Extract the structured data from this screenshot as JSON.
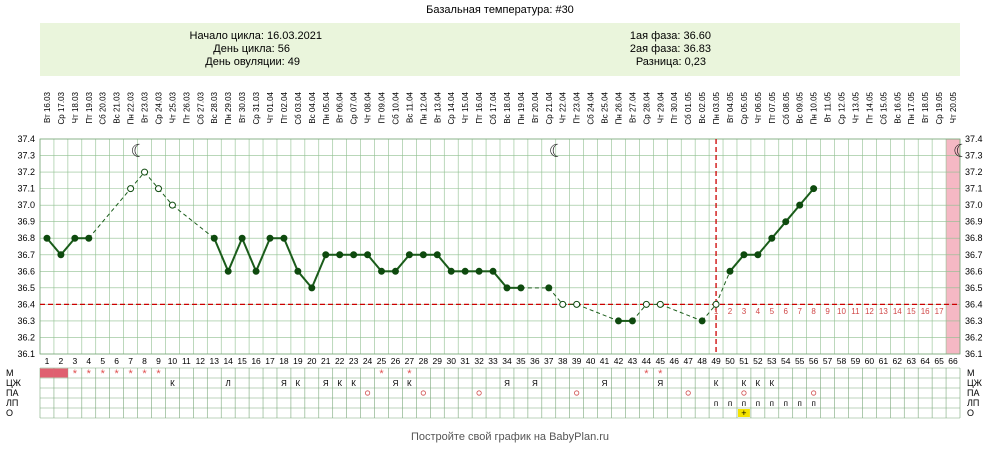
{
  "title": "Базальная температура: #30",
  "info": {
    "cycle_start": "Начало цикла: 16.03.2021",
    "cycle_day": "День цикла: 56",
    "ovulation_day": "День овуляции: 49",
    "phase1": "1ая фаза: 36.60",
    "phase2": "2ая фаза: 36.83",
    "difference": "Разница: 0,23"
  },
  "footer": "Постройте свой график на BabyPlan.ru",
  "colors": {
    "line": "#1a5c1a",
    "point": "#0e4a0e",
    "coverline": "#cc0000",
    "grid": "#8fbf8f",
    "info_bg": "#eaf5dc",
    "pink_band": "#f5b8c4",
    "menses": "#e06070",
    "star": "#e05050",
    "lp_yellow": "#f4e200"
  },
  "chart_data": {
    "type": "line",
    "ylim": [
      36.1,
      37.4
    ],
    "yticks": [
      "36.1",
      "36.2",
      "36.3",
      "36.4",
      "36.5",
      "36.6",
      "36.7",
      "36.8",
      "36.9",
      "37.0",
      "37.1",
      "37.2",
      "37.3",
      "37.4"
    ],
    "cycle_days": 66,
    "weekdays": [
      "Вт",
      "Ср",
      "Чт",
      "Пт",
      "Сб",
      "Вс",
      "Пн",
      "Вт",
      "Ср",
      "Чт",
      "Пт",
      "Сб",
      "Вс",
      "Пн",
      "Вт",
      "Ср",
      "Чт",
      "Пт",
      "Сб",
      "Вс",
      "Пн",
      "Вт",
      "Ср",
      "Чт",
      "Пт",
      "Сб",
      "Вс",
      "Пн",
      "Вт",
      "Ср",
      "Чт",
      "Пт",
      "Сб",
      "Вс",
      "Пн",
      "Вт",
      "Ср",
      "Чт",
      "Пт",
      "Сб",
      "Вс",
      "Пн",
      "Вт",
      "Ср",
      "Чт",
      "Пт",
      "Сб",
      "Вс",
      "Пн",
      "Вт",
      "Ср",
      "Чт",
      "Пт",
      "Сб",
      "Вс",
      "Пн",
      "Вт",
      "Ср",
      "Чт",
      "Пт",
      "Сб",
      "Вс",
      "Пн",
      "Вт",
      "Ср",
      "Чт"
    ],
    "dates": [
      "16.03",
      "17.03",
      "18.03",
      "19.03",
      "20.03",
      "21.03",
      "22.03",
      "23.03",
      "24.03",
      "25.03",
      "26.03",
      "27.03",
      "28.03",
      "29.03",
      "30.03",
      "31.03",
      "01.04",
      "02.04",
      "03.04",
      "04.04",
      "05.04",
      "06.04",
      "07.04",
      "08.04",
      "09.04",
      "10.04",
      "11.04",
      "12.04",
      "13.04",
      "14.04",
      "15.04",
      "16.04",
      "17.04",
      "18.04",
      "19.04",
      "20.04",
      "21.04",
      "22.04",
      "23.04",
      "24.04",
      "25.04",
      "26.04",
      "27.04",
      "28.04",
      "29.04",
      "30.04",
      "01.05",
      "02.05",
      "03.05",
      "04.05",
      "05.05",
      "06.05",
      "07.05",
      "08.05",
      "09.05",
      "10.05",
      "11.05",
      "12.05",
      "13.05",
      "14.05",
      "15.05",
      "16.05",
      "17.05",
      "18.05",
      "19.05",
      "20.05"
    ],
    "series": [
      {
        "values": [
          36.8,
          36.7,
          36.8,
          36.8,
          null,
          null,
          37.1,
          37.2,
          37.1,
          37.0,
          null,
          null,
          36.8,
          36.6,
          36.8,
          36.6,
          36.8,
          36.8,
          36.6,
          36.5,
          36.7,
          36.7,
          36.7,
          36.7,
          36.6,
          36.6,
          36.7,
          36.7,
          36.7,
          36.6,
          36.6,
          36.6,
          36.6,
          36.5,
          36.5,
          null,
          36.5,
          36.4,
          36.4,
          null,
          null,
          36.3,
          36.3,
          36.4,
          36.4,
          null,
          null,
          36.3,
          36.4,
          36.6,
          36.7,
          36.7,
          36.8,
          36.9,
          37.0,
          37.1,
          null,
          null,
          null,
          null,
          null,
          null,
          null,
          null,
          null,
          null
        ],
        "open_points": [
          7,
          8,
          9,
          10,
          38,
          39,
          44,
          45,
          49
        ]
      }
    ],
    "coverline": 36.4,
    "ovulation_day": 49,
    "luteal_day_numbers": [
      "1",
      "2",
      "3",
      "4",
      "5",
      "6",
      "7",
      "8",
      "9",
      "10",
      "11",
      "12",
      "13",
      "14",
      "15",
      "16",
      "17"
    ],
    "luteal_start_day": 49,
    "moon_days": [
      7,
      37,
      66
    ],
    "pink_band_day": 66,
    "row_labels": [
      "М",
      "ЦЖ",
      "ПА",
      "ЛП",
      "О"
    ],
    "rows": {
      "M": {
        "menses_days": [
          1,
          2
        ],
        "star_days": [
          3,
          4,
          5,
          6,
          7,
          8,
          9,
          25,
          27,
          44,
          45
        ]
      },
      "CZ": {
        "1": "",
        "10": "К",
        "14": "Л",
        "18": "Я",
        "19": "К",
        "21": "Я",
        "22": "К",
        "23": "К",
        "26": "Я",
        "27": "К",
        "34": "Я",
        "36": "Я",
        "41": "Я",
        "45": "Я",
        "49": "К",
        "51": "К",
        "52": "К",
        "53": "К"
      },
      "PA": {
        "days": [
          24,
          28,
          32,
          39,
          47,
          51,
          56
        ]
      },
      "LP": {
        "days": [
          49,
          50,
          51,
          52,
          53,
          54,
          55,
          56
        ]
      },
      "O": {
        "plus_days": [
          51
        ],
        "plus": "+"
      }
    }
  }
}
